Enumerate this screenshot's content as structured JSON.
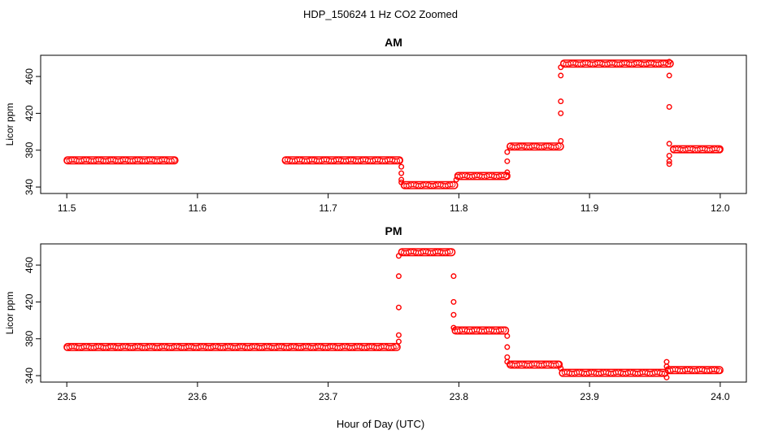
{
  "figure": {
    "suptitle": "HDP_150624  1 Hz CO2 Zoomed",
    "xlabel": "Hour of Day (UTC)"
  },
  "chart_data": [
    {
      "type": "scatter",
      "title": "AM",
      "xlabel": "",
      "ylabel": "Licor ppm",
      "xlim": [
        11.5,
        12.0
      ],
      "ylim": [
        333,
        483
      ],
      "xticks": [
        "11.5",
        "11.6",
        "11.7",
        "11.8",
        "11.9",
        "12.0"
      ],
      "yticks": [
        "340",
        "380",
        "420",
        "460"
      ],
      "marker": "open-circle",
      "color": "#ff0000",
      "grid": false,
      "segments": [
        {
          "x_start": 11.5,
          "x_end": 11.583,
          "y": 369
        },
        {
          "x_start": 11.667,
          "x_end": 11.755,
          "y": 369
        },
        {
          "x_start": 11.758,
          "x_end": 11.797,
          "y": 342
        },
        {
          "x_start": 11.799,
          "x_end": 11.837,
          "y": 352
        },
        {
          "x_start": 11.839,
          "x_end": 11.878,
          "y": 384
        },
        {
          "x_start": 11.88,
          "x_end": 11.962,
          "y": 474
        },
        {
          "x_start": 11.964,
          "x_end": 12.0,
          "y": 381
        }
      ],
      "transitions": [
        {
          "x": 11.756,
          "y": [
            362,
            355,
            348,
            345
          ]
        },
        {
          "x": 11.798,
          "y": [
            348
          ]
        },
        {
          "x": 11.837,
          "y": [
            356,
            368,
            378
          ]
        },
        {
          "x": 11.878,
          "y": [
            390,
            420,
            433,
            461,
            470
          ]
        },
        {
          "x": 11.961,
          "y": [
            476,
            461,
            427,
            387,
            374,
            368,
            365
          ]
        }
      ]
    },
    {
      "type": "scatter",
      "title": "PM",
      "xlabel": "",
      "ylabel": "Licor ppm",
      "xlim": [
        23.5,
        24.0
      ],
      "ylim": [
        333,
        483
      ],
      "xticks": [
        "23.5",
        "23.6",
        "23.7",
        "23.8",
        "23.9",
        "24.0"
      ],
      "yticks": [
        "340",
        "380",
        "420",
        "460"
      ],
      "marker": "open-circle",
      "color": "#ff0000",
      "grid": false,
      "segments": [
        {
          "x_start": 23.5,
          "x_end": 23.753,
          "y": 371
        },
        {
          "x_start": 23.756,
          "x_end": 23.795,
          "y": 474
        },
        {
          "x_start": 23.797,
          "x_end": 23.836,
          "y": 389
        },
        {
          "x_start": 23.839,
          "x_end": 23.877,
          "y": 352
        },
        {
          "x_start": 23.879,
          "x_end": 23.958,
          "y": 343
        },
        {
          "x_start": 23.96,
          "x_end": 24.0,
          "y": 346
        }
      ],
      "transitions": [
        {
          "x": 23.754,
          "y": [
            377,
            384,
            414,
            448,
            470
          ]
        },
        {
          "x": 23.796,
          "y": [
            448,
            420,
            406,
            392
          ]
        },
        {
          "x": 23.837,
          "y": [
            383,
            371,
            360,
            355
          ]
        },
        {
          "x": 23.878,
          "y": [
            348
          ]
        },
        {
          "x": 23.959,
          "y": [
            338,
            355,
            350
          ]
        }
      ]
    }
  ]
}
